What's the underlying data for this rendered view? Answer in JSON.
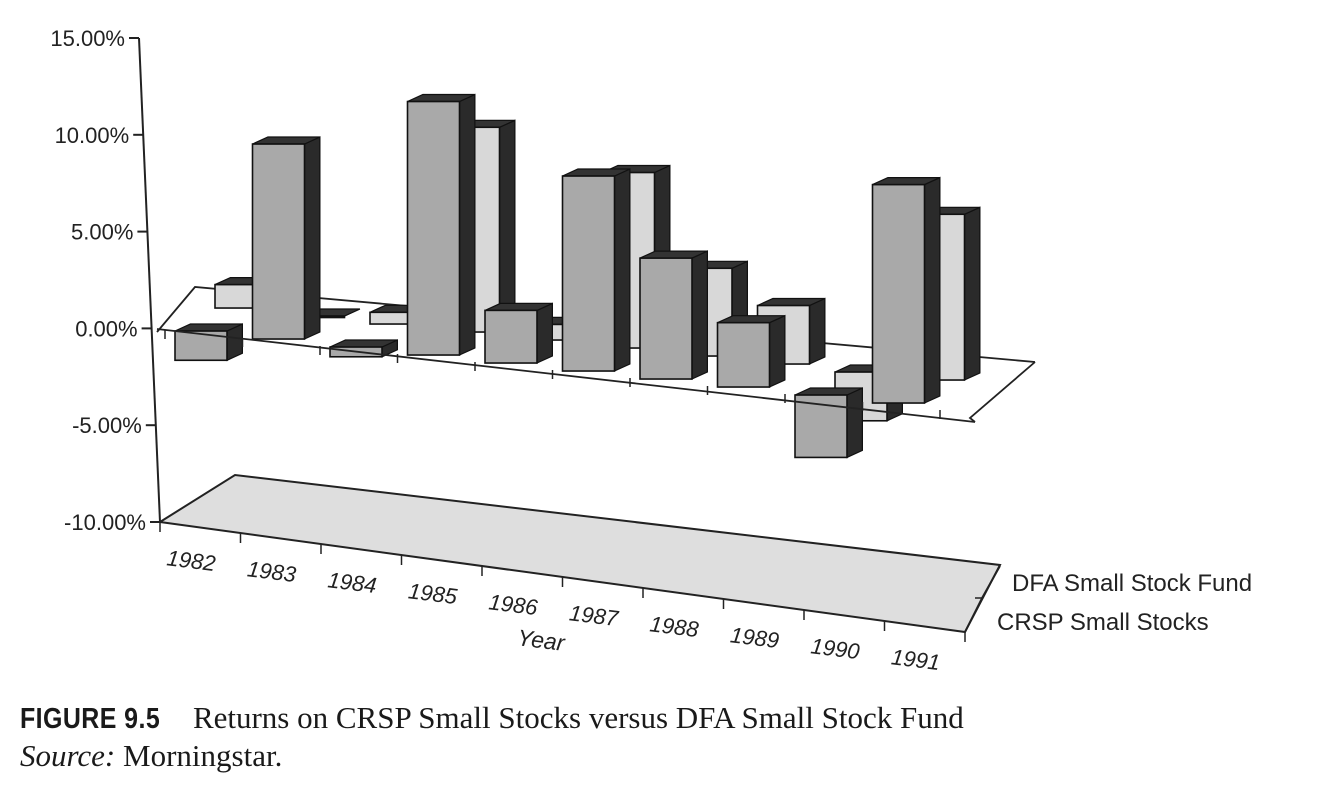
{
  "chart_data": {
    "type": "bar",
    "style": "3d-column",
    "categories": [
      "1982",
      "1983",
      "1984",
      "1985",
      "1986",
      "1987",
      "1988",
      "1989",
      "1990",
      "1991"
    ],
    "xlabel": "Year",
    "ylabel": "",
    "ylim": [
      -10,
      15
    ],
    "yticks": [
      "15.00%",
      "10.00%",
      "5.00%",
      "0.00%",
      "-5.00%",
      "-10.00%"
    ],
    "grid": false,
    "legend_position": "right",
    "series": [
      {
        "name": "DFA Small Stock Fund",
        "values": [
          1.2,
          0.0,
          0.6,
          10.5,
          0.8,
          9.0,
          4.5,
          3.0,
          -2.5,
          8.5
        ],
        "color": "#d8d8d8"
      },
      {
        "name": "CRSP Small Stocks",
        "values": [
          -1.5,
          10.0,
          -0.5,
          13.0,
          2.7,
          10.0,
          6.2,
          3.3,
          -3.2,
          11.2
        ],
        "color": "#a9a9a9"
      }
    ]
  },
  "caption": {
    "figure_label": "FIGURE 9.5",
    "title": "Returns on CRSP Small Stocks versus DFA Small Stock Fund",
    "source_label": "Source:",
    "source_text": " Morningstar."
  }
}
